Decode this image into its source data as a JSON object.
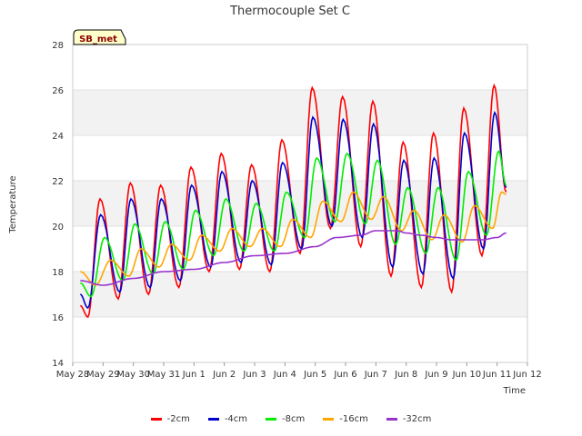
{
  "chart_data": {
    "type": "line",
    "title": "Thermocouple Set C",
    "xlabel": "Time",
    "ylabel": "Temperature",
    "annotation": "SB_met",
    "ylim": [
      14,
      28
    ],
    "yticks": [
      "14",
      "16",
      "18",
      "20",
      "22",
      "24",
      "26",
      "28"
    ],
    "xticks": [
      "May 28",
      "May 29",
      "May 30",
      "May 31",
      "Jun 1",
      "Jun 2",
      "Jun 3",
      "Jun 4",
      "Jun 5",
      "Jun 6",
      "Jun 7",
      "Jun 8",
      "Jun 9",
      "Jun 10",
      "Jun 11",
      "Jun 12"
    ],
    "xlim_days": [
      0,
      15
    ],
    "grid": true,
    "legend_position": "bottom",
    "series": [
      {
        "name": "-2cm",
        "color": "#ff0000",
        "points": [
          [
            0.25,
            16.5
          ],
          [
            0.5,
            16.0
          ],
          [
            0.9,
            21.2
          ],
          [
            1.5,
            16.8
          ],
          [
            1.9,
            21.9
          ],
          [
            2.5,
            17.0
          ],
          [
            2.9,
            21.8
          ],
          [
            3.5,
            17.3
          ],
          [
            3.9,
            22.6
          ],
          [
            4.5,
            18.0
          ],
          [
            4.9,
            23.2
          ],
          [
            5.5,
            18.1
          ],
          [
            5.9,
            22.7
          ],
          [
            6.5,
            18.0
          ],
          [
            6.9,
            23.8
          ],
          [
            7.5,
            18.8
          ],
          [
            7.9,
            26.1
          ],
          [
            8.5,
            19.9
          ],
          [
            8.9,
            25.7
          ],
          [
            9.5,
            19.1
          ],
          [
            9.9,
            25.5
          ],
          [
            10.5,
            17.8
          ],
          [
            10.9,
            23.7
          ],
          [
            11.5,
            17.3
          ],
          [
            11.9,
            24.1
          ],
          [
            12.5,
            17.1
          ],
          [
            12.9,
            25.2
          ],
          [
            13.5,
            18.7
          ],
          [
            13.9,
            26.2
          ],
          [
            14.3,
            21.5
          ]
        ]
      },
      {
        "name": "-4cm",
        "color": "#0000cc",
        "points": [
          [
            0.25,
            17.0
          ],
          [
            0.5,
            16.4
          ],
          [
            0.92,
            20.5
          ],
          [
            1.55,
            17.1
          ],
          [
            1.92,
            21.2
          ],
          [
            2.55,
            17.3
          ],
          [
            2.92,
            21.2
          ],
          [
            3.55,
            17.6
          ],
          [
            3.92,
            21.8
          ],
          [
            4.55,
            18.2
          ],
          [
            4.92,
            22.4
          ],
          [
            5.55,
            18.4
          ],
          [
            5.92,
            22.0
          ],
          [
            6.55,
            18.3
          ],
          [
            6.92,
            22.8
          ],
          [
            7.55,
            19.0
          ],
          [
            7.92,
            24.8
          ],
          [
            8.55,
            20.0
          ],
          [
            8.92,
            24.7
          ],
          [
            9.55,
            19.5
          ],
          [
            9.92,
            24.5
          ],
          [
            10.55,
            18.2
          ],
          [
            10.92,
            22.9
          ],
          [
            11.55,
            17.9
          ],
          [
            11.92,
            23.0
          ],
          [
            12.55,
            17.7
          ],
          [
            12.92,
            24.1
          ],
          [
            13.55,
            19.0
          ],
          [
            13.92,
            25.0
          ],
          [
            14.3,
            21.7
          ]
        ]
      },
      {
        "name": "-8cm",
        "color": "#00ee00",
        "points": [
          [
            0.25,
            17.5
          ],
          [
            0.6,
            16.9
          ],
          [
            1.05,
            19.5
          ],
          [
            1.65,
            17.6
          ],
          [
            2.05,
            20.1
          ],
          [
            2.65,
            17.9
          ],
          [
            3.05,
            20.2
          ],
          [
            3.65,
            18.1
          ],
          [
            4.05,
            20.7
          ],
          [
            4.65,
            18.7
          ],
          [
            5.05,
            21.2
          ],
          [
            5.65,
            18.9
          ],
          [
            6.05,
            21.0
          ],
          [
            6.65,
            18.9
          ],
          [
            7.05,
            21.5
          ],
          [
            7.65,
            19.5
          ],
          [
            8.05,
            23.0
          ],
          [
            8.65,
            20.2
          ],
          [
            9.05,
            23.2
          ],
          [
            9.65,
            20.1
          ],
          [
            10.05,
            22.9
          ],
          [
            10.65,
            19.2
          ],
          [
            11.05,
            21.7
          ],
          [
            11.65,
            18.8
          ],
          [
            12.05,
            21.7
          ],
          [
            12.65,
            18.5
          ],
          [
            13.05,
            22.4
          ],
          [
            13.65,
            19.6
          ],
          [
            14.05,
            23.3
          ],
          [
            14.3,
            21.8
          ]
        ]
      },
      {
        "name": "-16cm",
        "color": "#ffa500",
        "points": [
          [
            0.25,
            18.0
          ],
          [
            0.75,
            17.4
          ],
          [
            1.25,
            18.5
          ],
          [
            1.85,
            17.8
          ],
          [
            2.25,
            19.0
          ],
          [
            2.85,
            18.2
          ],
          [
            3.25,
            19.2
          ],
          [
            3.85,
            18.5
          ],
          [
            4.25,
            19.6
          ],
          [
            4.85,
            18.9
          ],
          [
            5.25,
            19.9
          ],
          [
            5.85,
            19.1
          ],
          [
            6.25,
            19.9
          ],
          [
            6.85,
            19.1
          ],
          [
            7.25,
            20.3
          ],
          [
            7.85,
            19.5
          ],
          [
            8.25,
            21.1
          ],
          [
            8.85,
            20.2
          ],
          [
            9.25,
            21.5
          ],
          [
            9.85,
            20.3
          ],
          [
            10.25,
            21.3
          ],
          [
            10.85,
            19.8
          ],
          [
            11.25,
            20.7
          ],
          [
            11.85,
            19.4
          ],
          [
            12.25,
            20.5
          ],
          [
            12.85,
            19.3
          ],
          [
            13.25,
            20.9
          ],
          [
            13.85,
            19.9
          ],
          [
            14.15,
            21.5
          ],
          [
            14.3,
            21.4
          ]
        ]
      },
      {
        "name": "-32cm",
        "color": "#9932cc",
        "points": [
          [
            0.25,
            17.6
          ],
          [
            1.0,
            17.4
          ],
          [
            2.0,
            17.7
          ],
          [
            3.0,
            18.0
          ],
          [
            4.0,
            18.1
          ],
          [
            5.0,
            18.4
          ],
          [
            6.0,
            18.7
          ],
          [
            7.0,
            18.8
          ],
          [
            8.0,
            19.1
          ],
          [
            8.7,
            19.5
          ],
          [
            9.5,
            19.6
          ],
          [
            10.0,
            19.8
          ],
          [
            10.7,
            19.8
          ],
          [
            11.0,
            19.7
          ],
          [
            11.5,
            19.6
          ],
          [
            12.0,
            19.5
          ],
          [
            12.5,
            19.4
          ],
          [
            13.0,
            19.4
          ],
          [
            13.5,
            19.4
          ],
          [
            14.0,
            19.5
          ],
          [
            14.3,
            19.7
          ]
        ]
      }
    ]
  }
}
